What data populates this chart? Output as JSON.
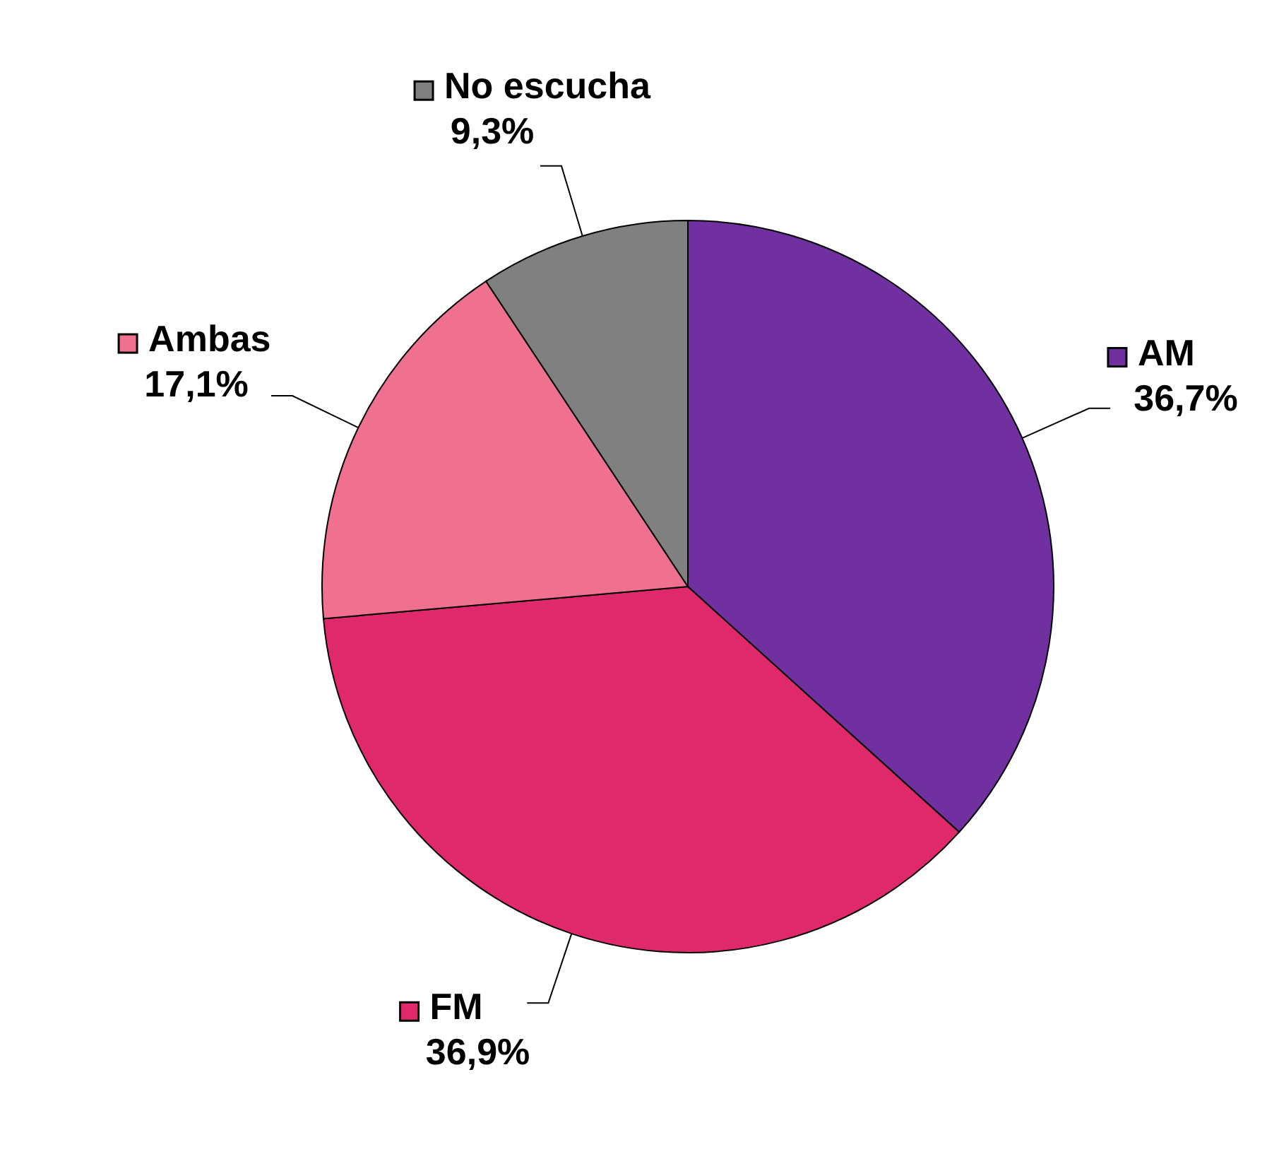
{
  "chart_data": {
    "type": "pie",
    "legend": "right",
    "categories": [
      "AM",
      "FM",
      "Ambas",
      "No escucha"
    ],
    "values": [
      36.7,
      36.9,
      17.1,
      9.3
    ],
    "colors": [
      "#7030a0",
      "#e0296b",
      "#f07090",
      "#808080"
    ],
    "value_labels": [
      "36,7%",
      "36,9%",
      "17,1%",
      "9,3%"
    ]
  }
}
